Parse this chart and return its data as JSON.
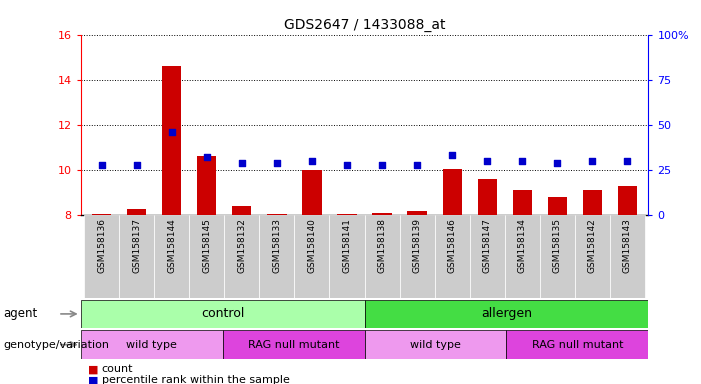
{
  "title": "GDS2647 / 1433088_at",
  "samples": [
    "GSM158136",
    "GSM158137",
    "GSM158144",
    "GSM158145",
    "GSM158132",
    "GSM158133",
    "GSM158140",
    "GSM158141",
    "GSM158138",
    "GSM158139",
    "GSM158146",
    "GSM158147",
    "GSM158134",
    "GSM158135",
    "GSM158142",
    "GSM158143"
  ],
  "count_values": [
    8.05,
    8.25,
    14.6,
    10.6,
    8.4,
    8.05,
    10.0,
    8.05,
    8.1,
    8.2,
    10.05,
    9.6,
    9.1,
    8.8,
    9.1,
    9.3
  ],
  "percentile_values": [
    28,
    28,
    46,
    32,
    29,
    29,
    30,
    28,
    28,
    28,
    33,
    30,
    30,
    29,
    30,
    30
  ],
  "ylim_left": [
    8,
    16
  ],
  "ylim_right": [
    0,
    100
  ],
  "yticks_left": [
    8,
    10,
    12,
    14,
    16
  ],
  "yticks_right": [
    0,
    25,
    50,
    75,
    100
  ],
  "bar_color": "#cc0000",
  "dot_color": "#0000cc",
  "agent_control_color": "#aaffaa",
  "agent_allergen_color": "#44dd44",
  "geno_wildtype_color": "#ee99ee",
  "geno_rag_color": "#dd44dd",
  "agent_control_label": "control",
  "agent_allergen_label": "allergen",
  "geno_wt1_label": "wild type",
  "geno_rag1_label": "RAG null mutant",
  "geno_wt2_label": "wild type",
  "geno_rag2_label": "RAG null mutant",
  "agent_label": "agent",
  "geno_label": "genotype/variation",
  "legend_count": "count",
  "legend_pct": "percentile rank within the sample"
}
